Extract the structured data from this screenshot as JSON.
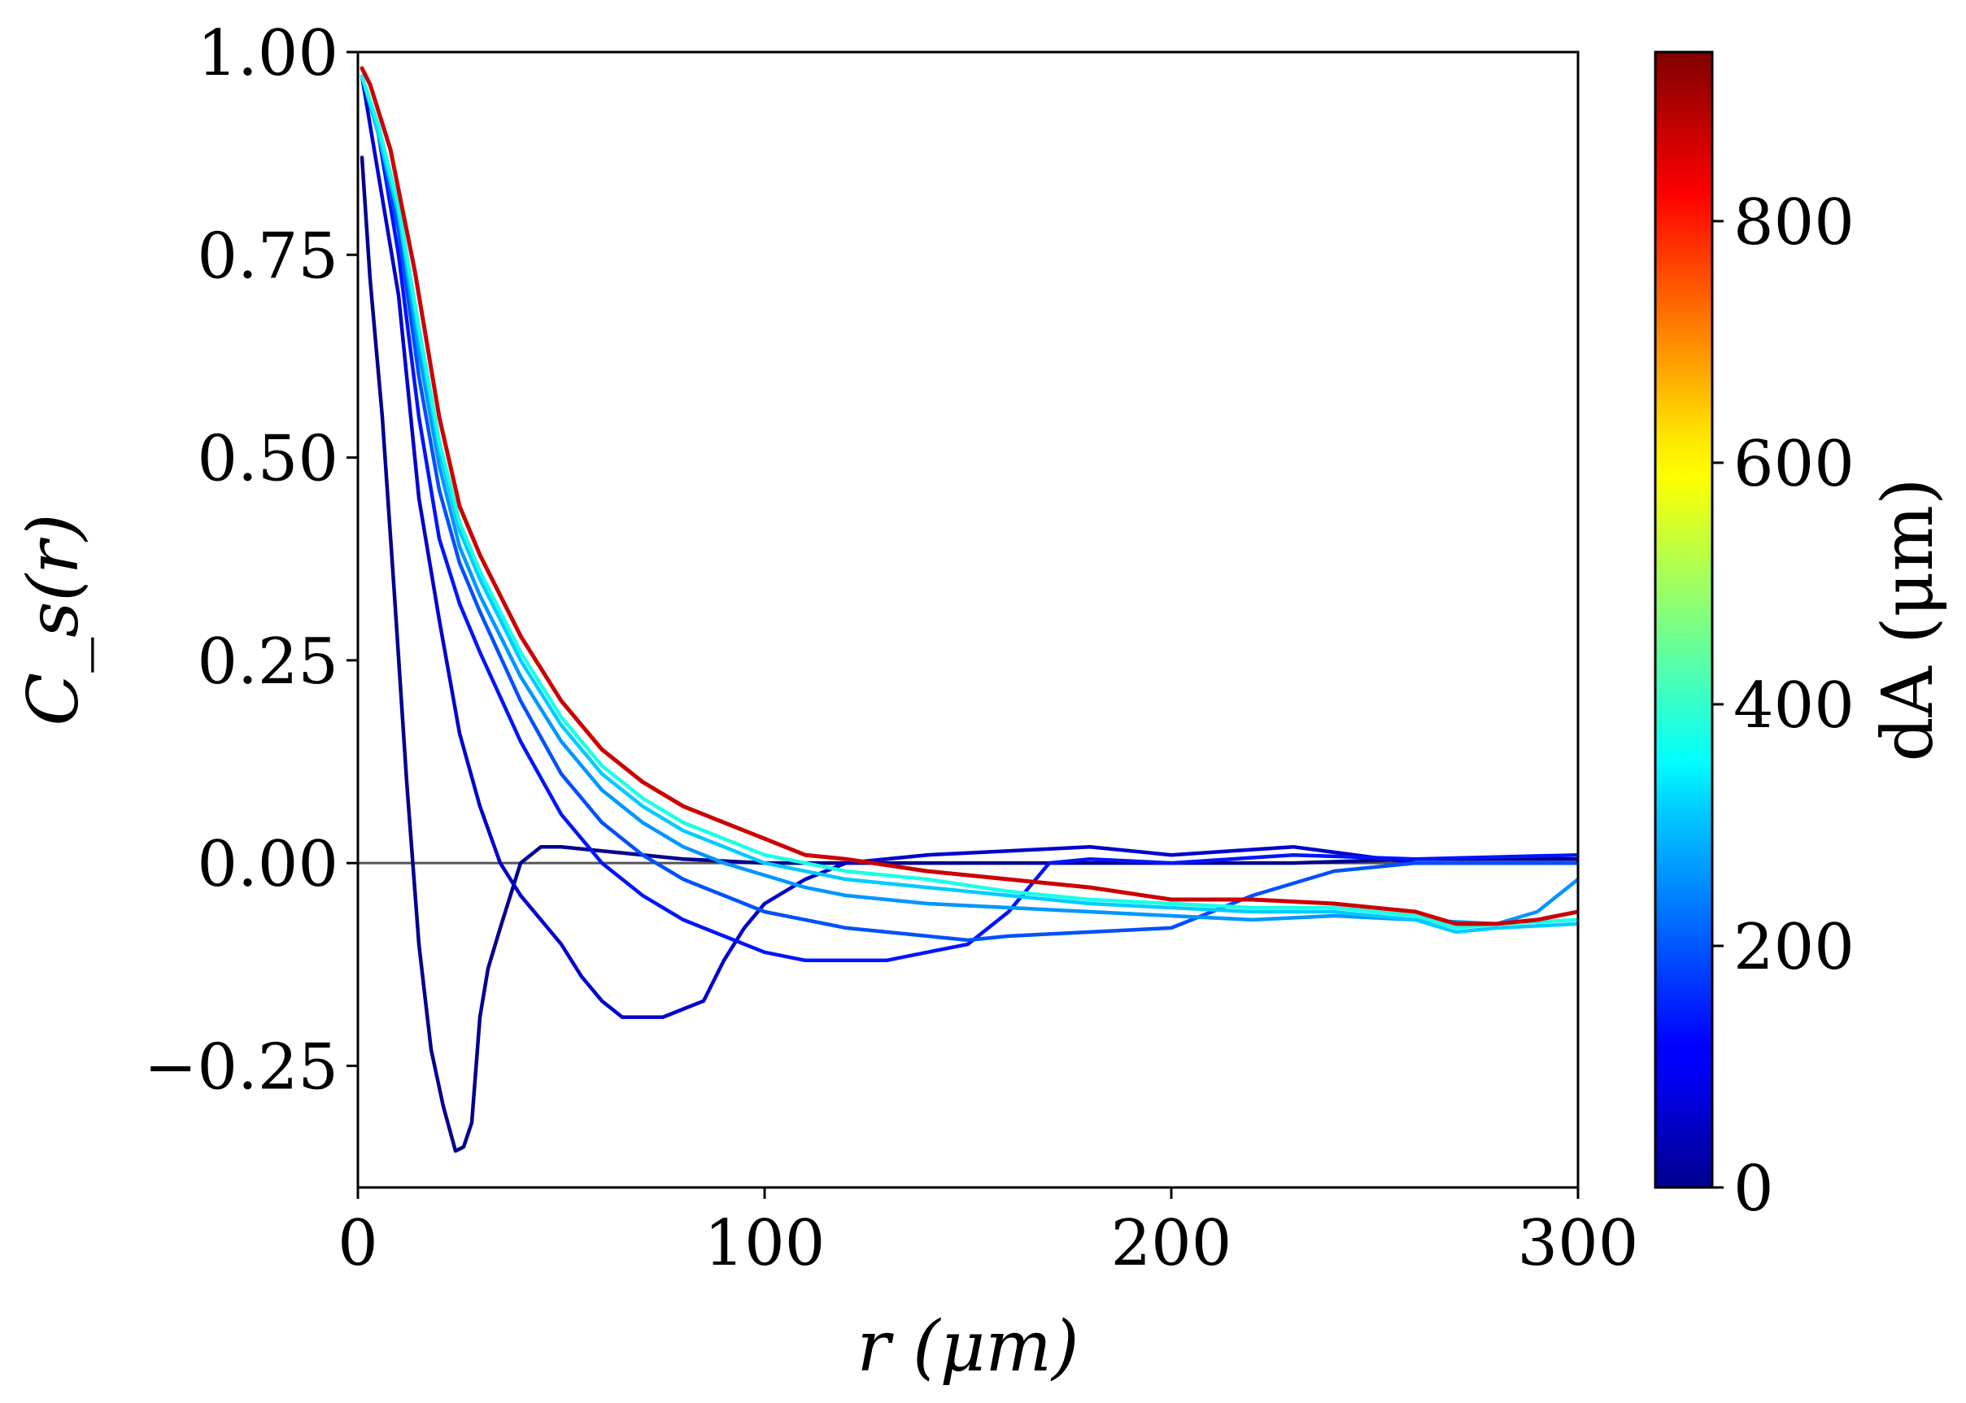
{
  "chart_data": {
    "type": "line",
    "title": "",
    "xlabel": "r (μm)",
    "ylabel": "C_s(r)",
    "xlim": [
      0,
      300
    ],
    "ylim": [
      -0.4,
      1.0
    ],
    "xticks": [
      0,
      100,
      200,
      300
    ],
    "xtick_labels": [
      "0",
      "100",
      "200",
      "300"
    ],
    "yticks": [
      -0.25,
      0.0,
      0.25,
      0.5,
      0.75,
      1.0
    ],
    "ytick_labels": [
      "−0.25",
      "0.00",
      "0.25",
      "0.50",
      "0.75",
      "1.00"
    ],
    "reference_line": {
      "y": 0.0,
      "color": "#555555"
    },
    "colorbar": {
      "label": "dA (μm)",
      "range": [
        0,
        940
      ],
      "ticks": [
        0,
        200,
        400,
        600,
        800
      ],
      "tick_labels": [
        "0",
        "200",
        "400",
        "600",
        "800"
      ],
      "colormap": "jet"
    },
    "series": [
      {
        "name": "dA ≈ 20",
        "color": "#00008f",
        "x": [
          1,
          3,
          6,
          9,
          12,
          15,
          18,
          21,
          24,
          26,
          28,
          30,
          32,
          35,
          40,
          45,
          50,
          60,
          80,
          100,
          120,
          150,
          180,
          200,
          230,
          260,
          300
        ],
        "y": [
          0.87,
          0.72,
          0.55,
          0.33,
          0.1,
          -0.1,
          -0.23,
          -0.3,
          -0.355,
          -0.35,
          -0.32,
          -0.19,
          -0.13,
          -0.08,
          0.0,
          0.02,
          0.02,
          0.015,
          0.005,
          0.0,
          0.0,
          0.0,
          0.0,
          0.0,
          0.0,
          0.005,
          0.005
        ]
      },
      {
        "name": "dA ≈ 75",
        "color": "#0000cc",
        "x": [
          1,
          5,
          10,
          15,
          20,
          25,
          30,
          35,
          40,
          45,
          50,
          55,
          60,
          65,
          70,
          75,
          80,
          85,
          88,
          90,
          95,
          100,
          110,
          120,
          140,
          160,
          180,
          200,
          230,
          260,
          300
        ],
        "y": [
          0.97,
          0.85,
          0.7,
          0.45,
          0.3,
          0.16,
          0.07,
          0.0,
          -0.04,
          -0.07,
          -0.1,
          -0.14,
          -0.17,
          -0.19,
          -0.19,
          -0.19,
          -0.18,
          -0.17,
          -0.14,
          -0.12,
          -0.08,
          -0.05,
          -0.02,
          0.0,
          0.01,
          0.015,
          0.02,
          0.01,
          0.02,
          0.0,
          0.0
        ]
      },
      {
        "name": "dA ≈ 120",
        "color": "#0014ff",
        "x": [
          1,
          5,
          10,
          15,
          20,
          25,
          30,
          40,
          50,
          60,
          70,
          80,
          90,
          100,
          110,
          120,
          130,
          140,
          150,
          160,
          165,
          170,
          180,
          200,
          230,
          260,
          300
        ],
        "y": [
          0.97,
          0.9,
          0.75,
          0.55,
          0.4,
          0.32,
          0.26,
          0.15,
          0.06,
          0.0,
          -0.04,
          -0.07,
          -0.09,
          -0.11,
          -0.12,
          -0.12,
          -0.12,
          -0.11,
          -0.1,
          -0.06,
          -0.03,
          0.0,
          0.005,
          0.0,
          0.01,
          0.005,
          0.01
        ]
      },
      {
        "name": "dA ≈ 170",
        "color": "#0050ff",
        "x": [
          1,
          5,
          10,
          15,
          20,
          25,
          30,
          40,
          50,
          60,
          70,
          80,
          90,
          100,
          110,
          120,
          130,
          140,
          150,
          160,
          180,
          200,
          220,
          240,
          260,
          280,
          300
        ],
        "y": [
          0.97,
          0.9,
          0.78,
          0.6,
          0.46,
          0.37,
          0.31,
          0.2,
          0.11,
          0.05,
          0.01,
          -0.02,
          -0.04,
          -0.06,
          -0.07,
          -0.08,
          -0.085,
          -0.09,
          -0.095,
          -0.09,
          -0.085,
          -0.08,
          -0.04,
          -0.01,
          0.0,
          0.0,
          0.0
        ]
      },
      {
        "name": "dA ≈ 240",
        "color": "#0096ff",
        "x": [
          1,
          5,
          10,
          15,
          20,
          25,
          30,
          40,
          50,
          60,
          70,
          80,
          90,
          100,
          110,
          120,
          140,
          160,
          180,
          200,
          220,
          240,
          260,
          280,
          290,
          300
        ],
        "y": [
          0.97,
          0.9,
          0.8,
          0.63,
          0.49,
          0.39,
          0.33,
          0.23,
          0.15,
          0.09,
          0.05,
          0.02,
          0.0,
          -0.015,
          -0.03,
          -0.04,
          -0.05,
          -0.055,
          -0.06,
          -0.065,
          -0.07,
          -0.065,
          -0.07,
          -0.075,
          -0.06,
          -0.02
        ]
      },
      {
        "name": "dA ≈ 300",
        "color": "#00ccff",
        "x": [
          1,
          5,
          10,
          15,
          20,
          25,
          30,
          40,
          50,
          60,
          70,
          80,
          90,
          100,
          110,
          120,
          140,
          160,
          180,
          200,
          220,
          240,
          260,
          270,
          280,
          300
        ],
        "y": [
          0.97,
          0.9,
          0.8,
          0.65,
          0.51,
          0.41,
          0.35,
          0.25,
          0.17,
          0.11,
          0.07,
          0.04,
          0.02,
          0.0,
          -0.01,
          -0.02,
          -0.03,
          -0.04,
          -0.05,
          -0.055,
          -0.06,
          -0.06,
          -0.07,
          -0.085,
          -0.08,
          -0.075
        ]
      },
      {
        "name": "dA ≈ 360",
        "color": "#1affe6",
        "x": [
          1,
          5,
          10,
          15,
          20,
          25,
          30,
          40,
          50,
          60,
          70,
          80,
          90,
          100,
          110,
          120,
          140,
          160,
          180,
          200,
          220,
          240,
          260,
          270,
          280,
          300
        ],
        "y": [
          0.97,
          0.91,
          0.81,
          0.66,
          0.52,
          0.42,
          0.36,
          0.26,
          0.18,
          0.12,
          0.08,
          0.05,
          0.03,
          0.01,
          0.0,
          -0.01,
          -0.02,
          -0.035,
          -0.045,
          -0.05,
          -0.055,
          -0.055,
          -0.065,
          -0.08,
          -0.075,
          -0.07
        ]
      },
      {
        "name": "dA ≈ 900",
        "color": "#cc0000",
        "x": [
          1,
          3,
          8,
          14,
          20,
          25,
          30,
          40,
          50,
          60,
          70,
          80,
          90,
          100,
          110,
          120,
          140,
          160,
          180,
          200,
          220,
          240,
          260,
          270,
          280,
          290,
          300
        ],
        "y": [
          0.98,
          0.96,
          0.88,
          0.73,
          0.55,
          0.44,
          0.38,
          0.28,
          0.2,
          0.14,
          0.1,
          0.07,
          0.05,
          0.03,
          0.01,
          0.005,
          -0.01,
          -0.02,
          -0.03,
          -0.045,
          -0.045,
          -0.05,
          -0.06,
          -0.075,
          -0.075,
          -0.07,
          -0.06
        ]
      }
    ]
  }
}
